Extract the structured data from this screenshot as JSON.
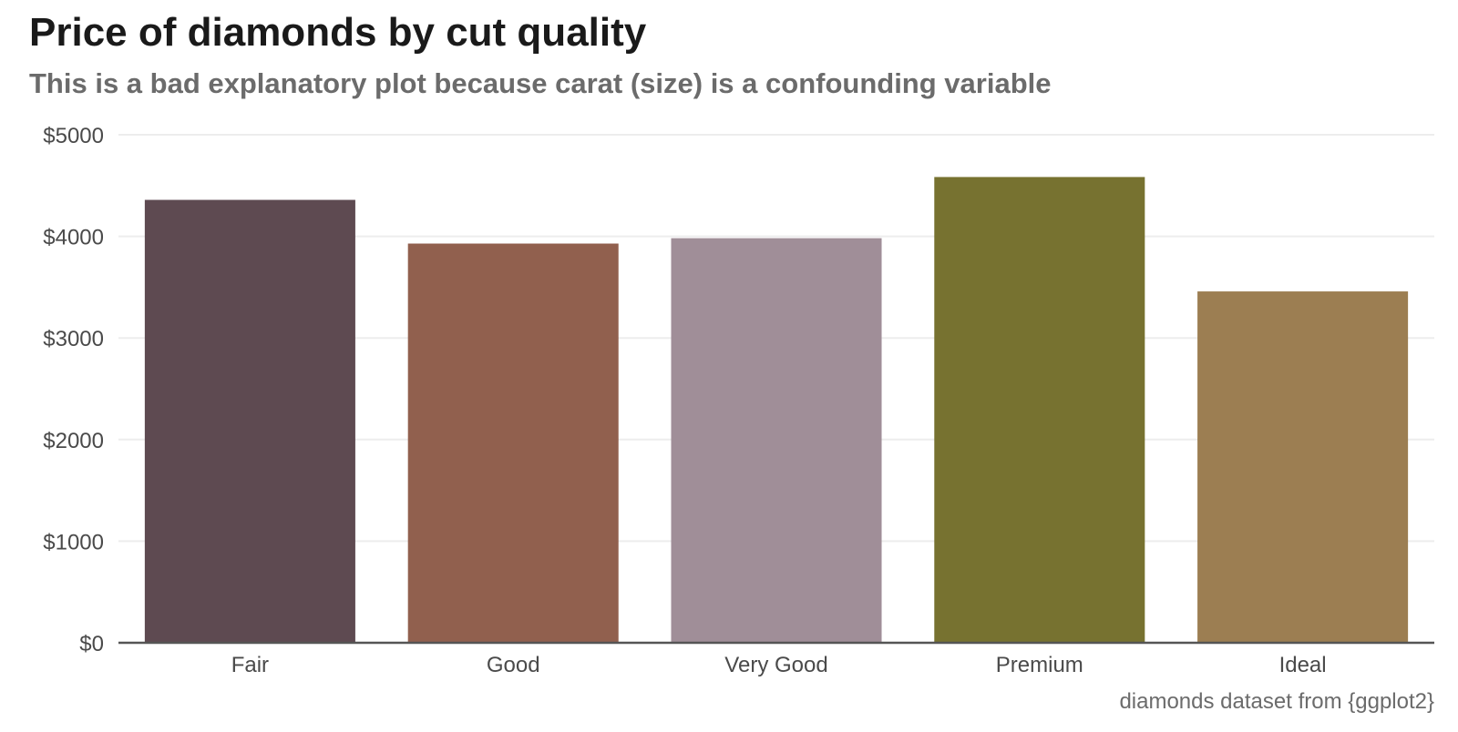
{
  "chart_data": {
    "type": "bar",
    "title": "Price of diamonds by cut quality",
    "subtitle": "This is a bad explanatory plot because carat (size) is a confounding variable",
    "caption": "diamonds dataset from {ggplot2}",
    "xlabel": "",
    "ylabel": "",
    "categories": [
      "Fair",
      "Good",
      "Very Good",
      "Premium",
      "Ideal"
    ],
    "values": [
      4359,
      3929,
      3982,
      4584,
      3458
    ],
    "colors": [
      "#5e4a51",
      "#91604e",
      "#a08e98",
      "#777230",
      "#9c7e52"
    ],
    "ylim": [
      0,
      5000
    ],
    "yticks": [
      0,
      1000,
      2000,
      3000,
      4000,
      5000
    ],
    "ytick_labels": [
      "$0",
      "$1000",
      "$2000",
      "$3000",
      "$4000",
      "$5000"
    ],
    "grid": "horizontal",
    "legend": "none"
  }
}
